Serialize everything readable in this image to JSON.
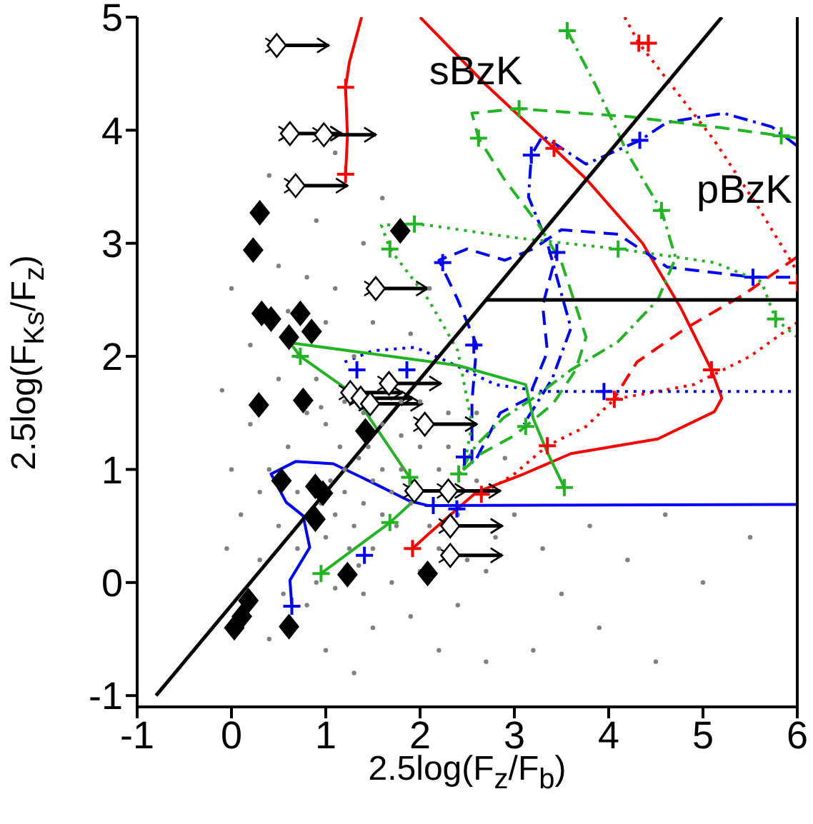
{
  "chart_data": {
    "type": "scatter",
    "xlabel": "2.5log(F$_{z}$/F$_{b}$)",
    "ylabel": "2.5log(F$_{Ks}$/F$_{z}$)",
    "xlim": [
      -1,
      6
    ],
    "ylim": [
      -1.1,
      5
    ],
    "xticks": [
      -1,
      0,
      1,
      2,
      3,
      4,
      5,
      6
    ],
    "yticks": [
      -1,
      0,
      1,
      2,
      3,
      4,
      5
    ],
    "annotations": [
      "sBzK",
      "pBzK"
    ],
    "series": [
      {
        "marker": "circle",
        "color": "#808080",
        "x": [
          1.0,
          1.1,
          1.2,
          1.3,
          1.4,
          1.5,
          1.6,
          1.7,
          1.2,
          1.35,
          1.5,
          1.05,
          1.8,
          1.25,
          1.45,
          1.6,
          1.15,
          0.95,
          1.75,
          1.9,
          0.5,
          0.6,
          0.7,
          0.8,
          0.4,
          0.3,
          0.5,
          0.7,
          0.9,
          1.0,
          1.2,
          1.4,
          1.6,
          1.8,
          2.0,
          2.2,
          2.4,
          2.2,
          2.0,
          1.7,
          1.4,
          1.1,
          0.9,
          0.8,
          2.6,
          2.8,
          2.5,
          3.0,
          2.9,
          2.3,
          2.0,
          0.95,
          1.3,
          0.6,
          0.2,
          0.1,
          0.3,
          0.2,
          0.5,
          0.8,
          1.1,
          1.5,
          1.9,
          2.1,
          1.4,
          0.9,
          1.6,
          0.4,
          1.1,
          0.0,
          -0.1,
          0.0,
          -0.05,
          0.4,
          1.0,
          1.5,
          1.9,
          2.4,
          2.7,
          3.3,
          3.5,
          3.8,
          4.2,
          3.9,
          4.6,
          5.0,
          3.2,
          2.7,
          2.2,
          1.3,
          4.5,
          5.5,
          2.3,
          2.6,
          1.0,
          0.7,
          1.8,
          2.1,
          1.35,
          0.55
        ],
        "values": [
          0.4,
          0.6,
          0.8,
          0.5,
          0.7,
          0.9,
          0.6,
          0.8,
          1.0,
          1.1,
          0.3,
          0.9,
          1.0,
          0.3,
          1.2,
          1.0,
          1.2,
          0.7,
          0.5,
          0.7,
          0.5,
          1.2,
          0.3,
          1.5,
          1.0,
          0.8,
          1.8,
          2.0,
          1.8,
          2.3,
          1.6,
          1.5,
          1.4,
          1.3,
          1.2,
          1.0,
          0.6,
          0.3,
          0.1,
          0.0,
          -0.1,
          -0.05,
          0.0,
          -0.2,
          0.9,
          0.4,
          0.2,
          0.6,
          1.1,
          1.5,
          1.6,
          1.55,
          2.0,
          2.4,
          1.4,
          0.6,
          0.2,
          2.1,
          2.8,
          2.7,
          2.6,
          2.3,
          2.2,
          2.6,
          3.0,
          3.2,
          3.4,
          3.6,
          3.8,
          2.6,
          1.7,
          1.0,
          0.3,
          -0.5,
          -0.6,
          -0.4,
          -0.3,
          -0.2,
          0.1,
          0.3,
          -0.1,
          0.5,
          0.2,
          -0.4,
          0.6,
          0.0,
          -0.6,
          -0.7,
          -0.6,
          -0.8,
          -0.7,
          0.4,
          1.2,
          1.5,
          1.4,
          0.8,
          1.6,
          0.5,
          0.15,
          -0.1
        ]
      },
      {
        "type": "line",
        "line_style": "solid",
        "color": "#ff0000",
        "x": [
          1.38,
          1.25,
          1.21,
          1.23,
          1.21
        ],
        "values": [
          5.0,
          4.6,
          4.38,
          3.95,
          3.61
        ]
      },
      {
        "type": "line",
        "line_style": "solid",
        "color": "#ff0000",
        "x": [
          2.0,
          2.7,
          3.42,
          3.76,
          4.36,
          4.77,
          5.09,
          5.2,
          5.12,
          4.52,
          3.6,
          3.1,
          2.6,
          2.09,
          1.92
        ],
        "values": [
          5.0,
          4.4,
          3.84,
          3.57,
          3.0,
          2.42,
          1.88,
          1.63,
          1.51,
          1.27,
          1.14,
          0.96,
          0.8,
          0.43,
          0.3
        ]
      },
      {
        "type": "line",
        "line_style": "dotted",
        "color": "#ff0000",
        "x": [
          4.17,
          4.32,
          5.12,
          5.6,
          6.0
        ],
        "values": [
          5.0,
          4.77,
          3.91,
          3.3,
          2.75
        ]
      },
      {
        "type": "line",
        "line_style": "dotted",
        "color": "#ff0000",
        "x": [
          6.0,
          5.5,
          4.9,
          4.06,
          3.76,
          3.35,
          3.0,
          2.65
        ],
        "values": [
          2.3,
          2.0,
          1.75,
          1.62,
          1.38,
          1.21,
          0.96,
          0.78
        ]
      },
      {
        "type": "line",
        "line_style": "dashed",
        "color": "#ff0000",
        "x": [
          6.0,
          5.42,
          4.82,
          4.3,
          4.06
        ],
        "values": [
          2.88,
          2.54,
          2.25,
          1.95,
          1.63
        ]
      },
      {
        "type": "line",
        "line_style": "solid",
        "color": "#0000ff",
        "x": [
          0.64,
          0.62,
          0.83,
          0.76,
          0.58,
          0.42,
          0.68,
          1.08,
          1.48,
          1.89,
          2.09,
          6.0
        ],
        "values": [
          -0.21,
          0.02,
          0.31,
          0.59,
          0.71,
          0.96,
          1.07,
          1.05,
          0.89,
          0.72,
          0.68,
          0.69
        ]
      },
      {
        "type": "line",
        "line_style": "dotted",
        "color": "#0000ff",
        "x": [
          1.2,
          1.5,
          1.95,
          2.3,
          2.8,
          3.3,
          6.0
        ],
        "values": [
          1.95,
          2.05,
          2.08,
          1.95,
          1.75,
          1.69,
          1.69
        ]
      },
      {
        "type": "line",
        "line_style": "dashed",
        "color": "#0000ff",
        "x": [
          2.55,
          2.55,
          2.6,
          2.4,
          2.2,
          2.5,
          2.9,
          3.2,
          3.5,
          4.1,
          4.62,
          5.53,
          6.0
        ],
        "values": [
          1.05,
          1.6,
          2.1,
          2.5,
          2.85,
          2.95,
          2.85,
          2.95,
          3.12,
          3.08,
          2.79,
          2.7,
          2.7
        ]
      },
      {
        "type": "line",
        "line_style": "dashed",
        "color": "#0000ff",
        "x": [
          2.6,
          2.85,
          3.15,
          3.35,
          3.3,
          3.45
        ],
        "values": [
          1.1,
          1.5,
          1.63,
          2.04,
          2.45,
          2.92
        ]
      },
      {
        "type": "line",
        "line_style": "dashdot",
        "color": "#0000ff",
        "x": [
          6.0,
          5.73,
          5.22,
          4.62,
          4.33,
          3.76,
          3.3,
          3.18,
          3.15,
          3.35,
          3.6,
          3.4,
          3.1
        ],
        "values": [
          3.86,
          4.03,
          4.15,
          4.07,
          3.91,
          3.7,
          3.95,
          3.78,
          3.41,
          3.0,
          2.25,
          1.8,
          1.4
        ]
      },
      {
        "type": "line",
        "line_style": "solid",
        "color": "#22b422",
        "x": [
          3.53,
          3.35,
          3.2,
          3.12,
          2.4,
          0.62,
          0.73,
          1.29,
          1.89,
          1.98,
          1.68,
          0.95
        ],
        "values": [
          0.84,
          1.15,
          1.45,
          1.75,
          1.92,
          2.12,
          2.0,
          1.67,
          0.93,
          0.76,
          0.53,
          0.08
        ]
      },
      {
        "type": "line",
        "line_style": "dotted",
        "color": "#22b422",
        "x": [
          6.0,
          5.77,
          5.62,
          5.12,
          4.1,
          3.0,
          2.09,
          1.94,
          1.59,
          1.68,
          2.09,
          2.4,
          2.55,
          2.45
        ],
        "values": [
          2.17,
          2.33,
          2.66,
          2.83,
          2.95,
          3.05,
          3.16,
          3.17,
          3.16,
          2.95,
          2.5,
          2.05,
          1.4,
          0.95
        ]
      },
      {
        "type": "line",
        "line_style": "dashed",
        "color": "#22b422",
        "x": [
          6.0,
          5.83,
          5.12,
          4.21,
          3.05,
          2.55,
          2.62,
          2.89,
          3.26,
          3.5,
          3.76,
          3.65,
          3.41,
          3.0,
          2.65,
          2.41
        ],
        "values": [
          3.93,
          3.95,
          4.03,
          4.12,
          4.19,
          4.15,
          3.93,
          3.57,
          3.16,
          2.83,
          2.17,
          1.88,
          1.58,
          1.3,
          1.14,
          0.96
        ]
      },
      {
        "type": "line",
        "line_style": "dashdot",
        "color": "#22b422",
        "x": [
          3.56,
          3.86,
          4.21,
          4.56,
          4.71,
          4.52,
          4.1,
          3.6,
          3.2,
          2.89,
          2.59,
          2.41
        ],
        "values": [
          4.88,
          4.4,
          3.78,
          3.29,
          2.87,
          2.5,
          2.13,
          1.88,
          1.63,
          1.46,
          1.21,
          0.96
        ]
      },
      {
        "type": "line",
        "line_style": "solid",
        "color": "#000000",
        "x": [
          -0.8,
          5.2
        ],
        "values": [
          -1.0,
          5.0
        ]
      },
      {
        "type": "line",
        "line_style": "solid",
        "color": "#000000",
        "x": [
          2.7,
          6.0
        ],
        "values": [
          2.5,
          2.5
        ]
      },
      {
        "marker": "diamond",
        "color": "#000000",
        "x": [
          0.03,
          0.11,
          0.18,
          0.61,
          1.23,
          2.08,
          0.89,
          0.53,
          0.89,
          0.97,
          1.42,
          0.29,
          0.76,
          0.3,
          0.23,
          1.79,
          0.32,
          0.42,
          0.73,
          0.85,
          0.61
        ],
        "values": [
          -0.4,
          -0.3,
          -0.16,
          -0.39,
          0.07,
          0.08,
          0.56,
          0.9,
          0.85,
          0.79,
          1.34,
          1.57,
          1.61,
          3.27,
          2.94,
          3.11,
          2.38,
          2.33,
          2.38,
          2.22,
          2.17
        ]
      },
      {
        "marker": "diamond",
        "color": "#000000",
        "x": [
          0.48,
          0.62,
          0.98,
          0.68,
          1.53,
          1.67,
          1.26,
          1.37,
          1.47,
          2.05,
          1.94,
          2.3,
          2.32,
          2.32
        ],
        "values": [
          4.75,
          3.97,
          3.96,
          3.51,
          2.6,
          1.76,
          1.68,
          1.63,
          1.58,
          1.4,
          0.81,
          0.81,
          0.5,
          0.24
        ],
        "xerrors": [
          [
            0.48,
            1.03
          ],
          [
            0.62,
            1.17
          ],
          [
            0.98,
            1.53
          ],
          [
            0.68,
            1.23
          ],
          [
            1.53,
            2.08
          ],
          [
            1.67,
            2.22
          ],
          [
            1.26,
            1.81
          ],
          [
            1.37,
            1.92
          ],
          [
            1.47,
            2.02
          ],
          [
            2.05,
            2.6
          ],
          [
            1.94,
            2.49
          ],
          [
            2.3,
            2.85
          ],
          [
            2.32,
            2.87
          ],
          [
            2.32,
            2.87
          ]
        ]
      },
      {
        "marker": "cross",
        "color": "#ff0000",
        "x": [
          1.21,
          1.21,
          4.32,
          4.42,
          3.42,
          5.09,
          4.06,
          3.35,
          2.65,
          1.92,
          6.0
        ],
        "values": [
          4.38,
          3.61,
          4.77,
          4.77,
          3.84,
          1.88,
          1.62,
          1.21,
          0.78,
          0.3,
          2.65
        ]
      },
      {
        "marker": "cross",
        "color": "#0000ff",
        "x": [
          0.64,
          1.41,
          2.14,
          2.39,
          3.95,
          1.33,
          1.86,
          2.24,
          2.57,
          2.47,
          5.53,
          3.45,
          3.18,
          4.33
        ],
        "values": [
          -0.21,
          0.24,
          0.68,
          0.65,
          1.69,
          1.88,
          1.88,
          2.83,
          2.1,
          1.11,
          2.7,
          2.92,
          3.78,
          3.91
        ]
      },
      {
        "marker": "cross",
        "color": "#22b422",
        "x": [
          3.53,
          3.12,
          2.41,
          0.73,
          1.89,
          1.68,
          0.95,
          1.94,
          1.68,
          4.1,
          5.77,
          3.05,
          5.83,
          2.62,
          3.56,
          4.56
        ],
        "values": [
          0.84,
          1.38,
          0.96,
          2.0,
          0.93,
          0.53,
          0.08,
          3.17,
          2.95,
          2.95,
          2.33,
          4.19,
          3.95,
          3.93,
          4.88,
          3.29
        ]
      }
    ]
  }
}
